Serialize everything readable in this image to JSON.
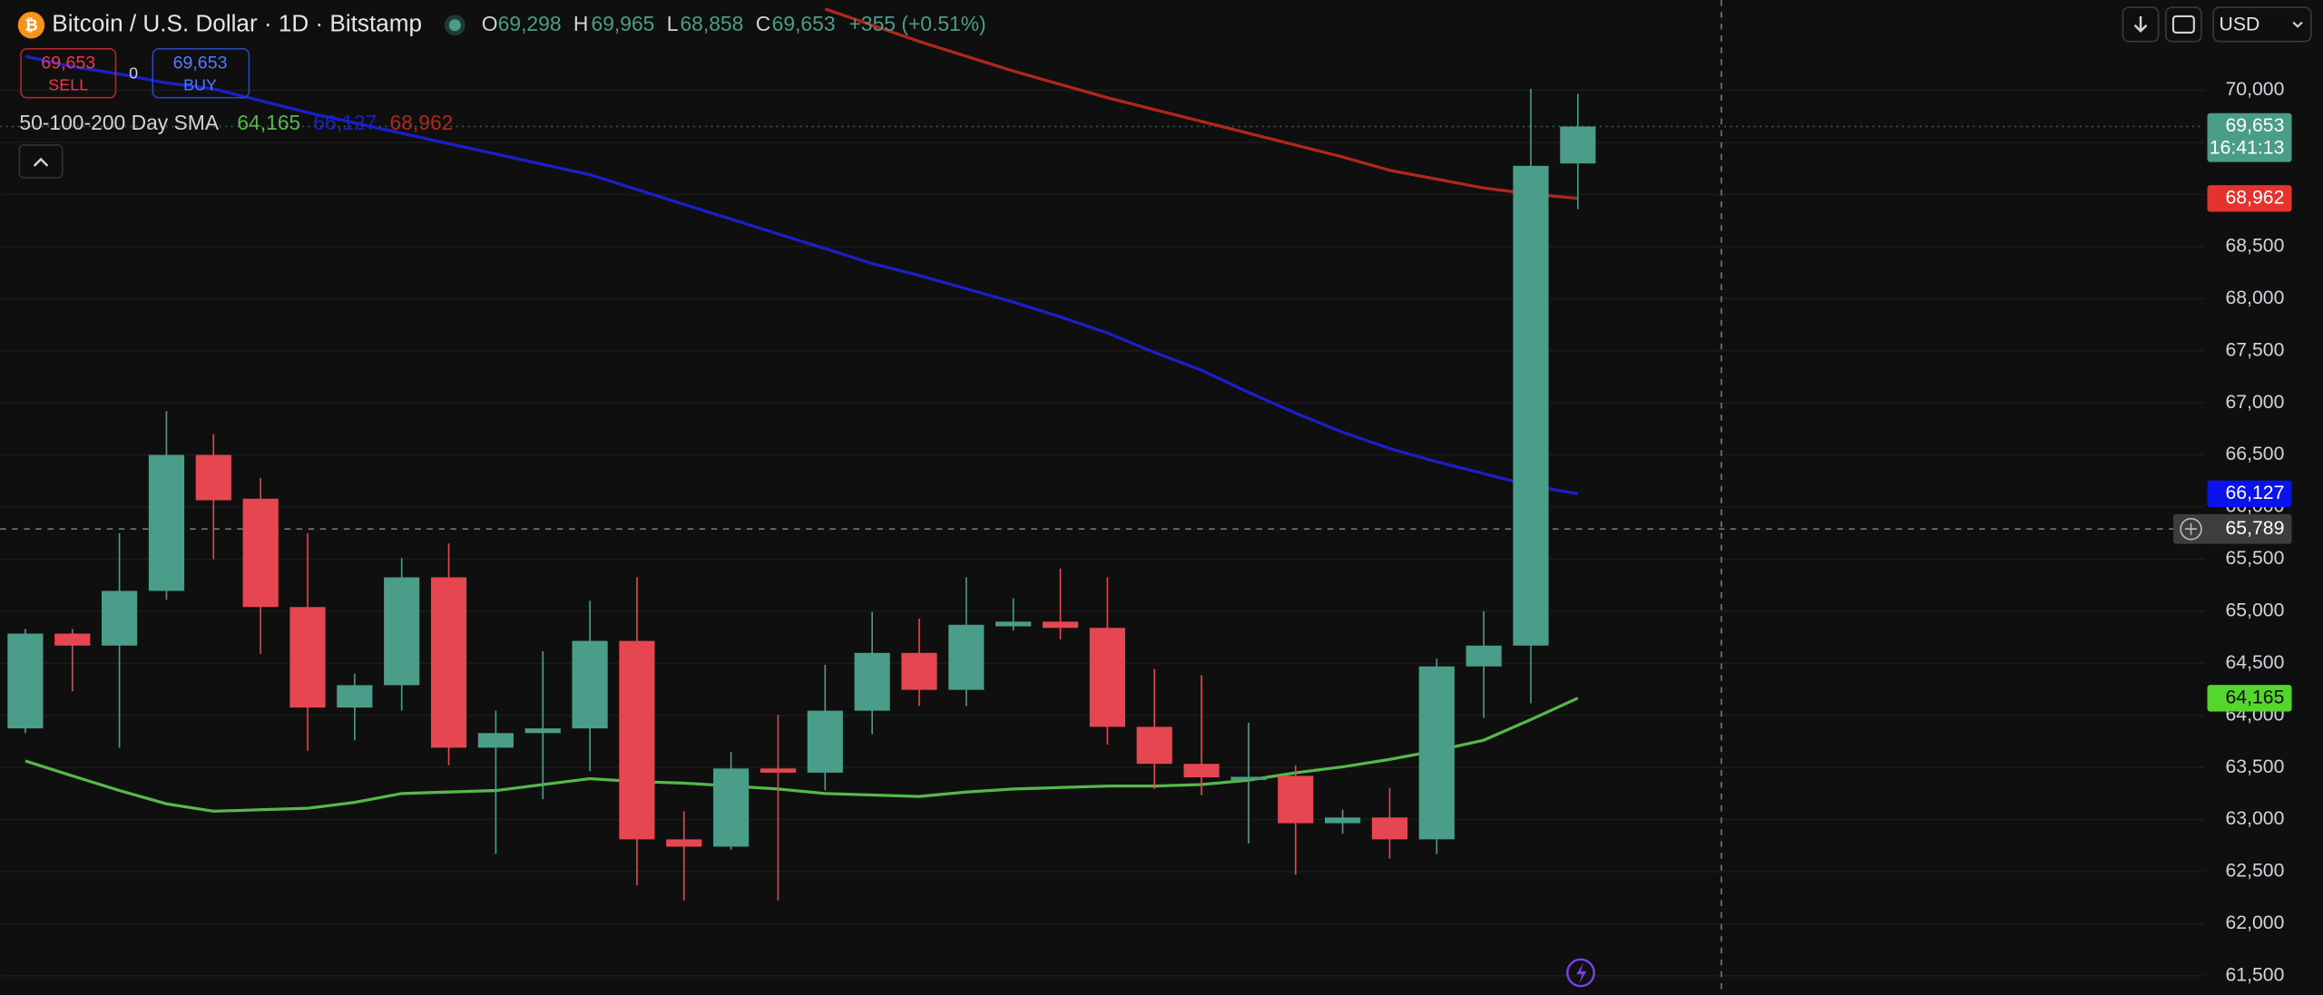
{
  "header": {
    "title": "Bitcoin / U.S. Dollar · 1D · Bitstamp",
    "o_key": "O",
    "o": "69,298",
    "h_key": "H",
    "h": "69,965",
    "l_key": "L",
    "l": "68,858",
    "c_key": "C",
    "c": "69,653",
    "change": "+355 (+0.51%)",
    "sell_price": "69,653",
    "sell": "SELL",
    "spread": "0",
    "buy_price": "69,653",
    "buy": "BUY",
    "currency": "USD"
  },
  "chart_data": {
    "type": "candlestick",
    "indicator_title": "50-100-200 Day SMA",
    "categories": [
      null,
      null,
      null,
      null,
      null,
      null,
      null,
      null,
      null,
      null,
      null,
      null,
      null,
      null,
      null,
      null,
      null,
      null,
      null,
      null,
      null,
      null,
      null,
      null,
      null,
      null,
      null,
      null,
      null,
      null,
      null,
      null,
      null,
      null
    ],
    "open": [
      63875,
      64785,
      64670,
      65195,
      66500,
      66080,
      65040,
      64075,
      64290,
      65325,
      63690,
      63830,
      63875,
      64715,
      62810,
      62740,
      63490,
      63450,
      64045,
      64600,
      64245,
      64855,
      64900,
      64840,
      63890,
      63535,
      63380,
      63420,
      62965,
      63020,
      62810,
      64470,
      64670,
      69298
    ],
    "high": [
      64830,
      64830,
      65750,
      66920,
      66700,
      66280,
      65750,
      64400,
      65510,
      65650,
      64045,
      64615,
      65100,
      65325,
      63080,
      63650,
      64005,
      64485,
      64995,
      64930,
      65325,
      65125,
      65410,
      65325,
      64445,
      64385,
      63930,
      63520,
      63095,
      63305,
      64545,
      65000,
      70015,
      69965
    ],
    "low": [
      63830,
      64230,
      63690,
      65110,
      65500,
      64590,
      63660,
      63760,
      64045,
      63520,
      62670,
      63195,
      63465,
      62370,
      62225,
      62710,
      62225,
      63280,
      63820,
      64090,
      64090,
      64815,
      64730,
      63720,
      63295,
      63235,
      62770,
      62470,
      62865,
      62625,
      62670,
      63975,
      64115,
      68858
    ],
    "close": [
      64785,
      64670,
      65195,
      66500,
      66065,
      65040,
      64075,
      64290,
      65325,
      63690,
      63830,
      63875,
      64715,
      62810,
      62740,
      63490,
      63450,
      64045,
      64600,
      64245,
      64870,
      64900,
      64840,
      63890,
      63535,
      63405,
      63410,
      62965,
      63020,
      62810,
      64470,
      64670,
      69275,
      69653
    ],
    "up_color": "#4a9d88",
    "down_color": "#e5464f",
    "series": [
      {
        "color": "#56b84a",
        "legend_value": "64,165",
        "values": [
          63563,
          63420,
          63279,
          63151,
          63080,
          63094,
          63108,
          63165,
          63250,
          63265,
          63279,
          63336,
          63392,
          63364,
          63350,
          63321,
          63293,
          63250,
          63236,
          63222,
          63265,
          63293,
          63307,
          63321,
          63321,
          63336,
          63378,
          63449,
          63506,
          63577,
          63662,
          63762,
          63960,
          64165
        ]
      },
      {
        "color": "#1a1fc8",
        "legend_value": "66,127",
        "values": [
          70327,
          70227,
          70156,
          70071,
          70014,
          69900,
          69787,
          69687,
          69588,
          69488,
          69389,
          69289,
          69190,
          69048,
          68906,
          68764,
          68622,
          68480,
          68337,
          68224,
          68096,
          67968,
          67826,
          67670,
          67485,
          67314,
          67101,
          66902,
          66718,
          66562,
          66434,
          66320,
          66207,
          66127
        ]
      },
      {
        "color": "#b3261e",
        "legend_value": "68,962",
        "values": [
          null,
          null,
          null,
          null,
          null,
          null,
          null,
          null,
          null,
          null,
          null,
          null,
          null,
          null,
          null,
          null,
          null,
          70782,
          70625,
          70469,
          70327,
          70185,
          70057,
          69929,
          69815,
          69702,
          69588,
          69474,
          69360,
          69233,
          69147,
          69062,
          69005,
          68962
        ]
      }
    ],
    "ylim": [
      61316,
      70867
    ],
    "yticks": [
      {
        "value": 61500,
        "label": "61,500"
      },
      {
        "value": 62000,
        "label": "62,000"
      },
      {
        "value": 62500,
        "label": "62,500"
      },
      {
        "value": 63000,
        "label": "63,000"
      },
      {
        "value": 63500,
        "label": "63,500"
      },
      {
        "value": 64000,
        "label": "64,000"
      },
      {
        "value": 64500,
        "label": "64,500"
      },
      {
        "value": 65000,
        "label": "65,000"
      },
      {
        "value": 65500,
        "label": "65,500"
      },
      {
        "value": 66000,
        "label": "66,000"
      },
      {
        "value": 66500,
        "label": "66,500"
      },
      {
        "value": 67000,
        "label": "67,000"
      },
      {
        "value": 67500,
        "label": "67,500"
      },
      {
        "value": 68000,
        "label": "68,000"
      },
      {
        "value": 68500,
        "label": "68,500"
      },
      {
        "value": 69000,
        "label": "69,000"
      },
      {
        "value": 69500,
        "label": "69,500"
      },
      {
        "value": 70000,
        "label": "70,000"
      }
    ],
    "grid": true,
    "price_labels": [
      {
        "value": 69653,
        "label": "69,653",
        "countdown": "16:41:13",
        "color": "#4a9d88",
        "text_color": "#ffffff"
      },
      {
        "value": 68962,
        "label": "68,962",
        "color": "#e5322d",
        "text_color": "#ffffff"
      },
      {
        "value": 66127,
        "label": "66,127",
        "color": "#0b12f0",
        "text_color": "#ffffff"
      },
      {
        "value": 64165,
        "label": "64,165",
        "color": "#55d62c",
        "text_color": "#0f0f0f"
      }
    ],
    "crosshair": {
      "value": 65789,
      "label": "65,789"
    }
  }
}
